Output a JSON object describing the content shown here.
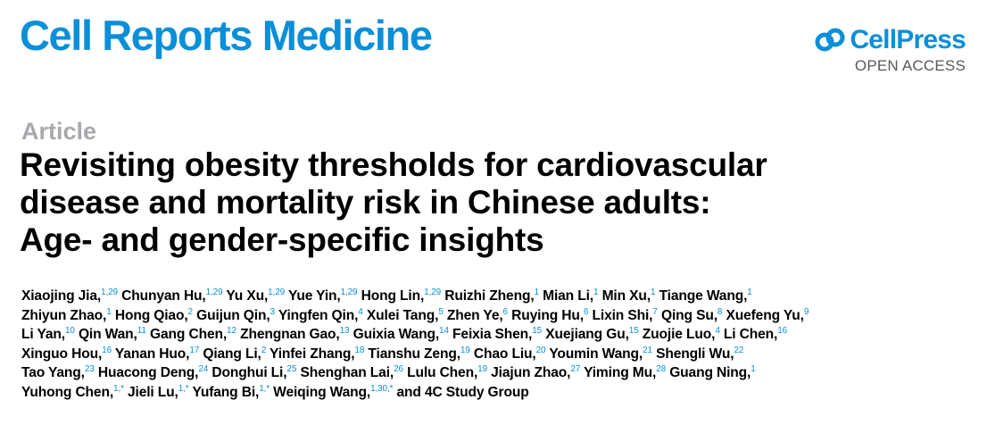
{
  "header": {
    "journal_name": "Cell Reports Medicine",
    "publisher": "CellPress",
    "access_label": "OPEN ACCESS",
    "logo_icon": "cellpress-logo-icon",
    "brand_color": "#0a8fd8"
  },
  "article": {
    "type_label": "Article",
    "title_lines": [
      "Revisiting obesity thresholds for cardiovascular",
      "disease and mortality risk in Chinese adults:",
      "Age- and gender-specific insights"
    ]
  },
  "author_lines": [
    [
      {
        "name": "Xiaojing Jia,",
        "aff": "1,29"
      },
      {
        "name": "Chunyan Hu,",
        "aff": "1,29"
      },
      {
        "name": "Yu Xu,",
        "aff": "1,29"
      },
      {
        "name": "Yue Yin,",
        "aff": "1,29"
      },
      {
        "name": "Hong Lin,",
        "aff": "1,29"
      },
      {
        "name": "Ruizhi Zheng,",
        "aff": "1"
      },
      {
        "name": "Mian Li,",
        "aff": "1"
      },
      {
        "name": "Min Xu,",
        "aff": "1"
      },
      {
        "name": "Tiange Wang,",
        "aff": "1"
      }
    ],
    [
      {
        "name": "Zhiyun Zhao,",
        "aff": "1"
      },
      {
        "name": "Hong Qiao,",
        "aff": "2"
      },
      {
        "name": "Guijun Qin,",
        "aff": "3"
      },
      {
        "name": "Yingfen Qin,",
        "aff": "4"
      },
      {
        "name": "Xulei Tang,",
        "aff": "5"
      },
      {
        "name": "Zhen Ye,",
        "aff": "6"
      },
      {
        "name": "Ruying Hu,",
        "aff": "6"
      },
      {
        "name": "Lixin Shi,",
        "aff": "7"
      },
      {
        "name": "Qing Su,",
        "aff": "8"
      },
      {
        "name": "Xuefeng Yu,",
        "aff": "9"
      }
    ],
    [
      {
        "name": "Li Yan,",
        "aff": "10"
      },
      {
        "name": "Qin Wan,",
        "aff": "11"
      },
      {
        "name": "Gang Chen,",
        "aff": "12"
      },
      {
        "name": "Zhengnan Gao,",
        "aff": "13"
      },
      {
        "name": "Guixia Wang,",
        "aff": "14"
      },
      {
        "name": "Feixia Shen,",
        "aff": "15"
      },
      {
        "name": "Xuejiang Gu,",
        "aff": "15"
      },
      {
        "name": "Zuojie Luo,",
        "aff": "4"
      },
      {
        "name": "Li Chen,",
        "aff": "16"
      }
    ],
    [
      {
        "name": "Xinguo Hou,",
        "aff": "16"
      },
      {
        "name": "Yanan Huo,",
        "aff": "17"
      },
      {
        "name": "Qiang Li,",
        "aff": "2"
      },
      {
        "name": "Yinfei Zhang,",
        "aff": "18"
      },
      {
        "name": "Tianshu Zeng,",
        "aff": "19"
      },
      {
        "name": "Chao Liu,",
        "aff": "20"
      },
      {
        "name": "Youmin Wang,",
        "aff": "21"
      },
      {
        "name": "Shengli Wu,",
        "aff": "22"
      }
    ],
    [
      {
        "name": "Tao Yang,",
        "aff": "23"
      },
      {
        "name": "Huacong Deng,",
        "aff": "24"
      },
      {
        "name": "Donghui Li,",
        "aff": "25"
      },
      {
        "name": "Shenghan Lai,",
        "aff": "26"
      },
      {
        "name": "Lulu Chen,",
        "aff": "19"
      },
      {
        "name": "Jiajun Zhao,",
        "aff": "27"
      },
      {
        "name": "Yiming Mu,",
        "aff": "28"
      },
      {
        "name": "Guang Ning,",
        "aff": "1"
      }
    ],
    [
      {
        "name": "Yuhong Chen,",
        "aff": "1,*"
      },
      {
        "name": "Jieli Lu,",
        "aff": "1,*"
      },
      {
        "name": "Yufang Bi,",
        "aff": "1,*"
      },
      {
        "name": "Weiqing Wang,",
        "aff": "1,30,*"
      },
      {
        "name": "and 4C Study Group",
        "aff": ""
      }
    ]
  ]
}
